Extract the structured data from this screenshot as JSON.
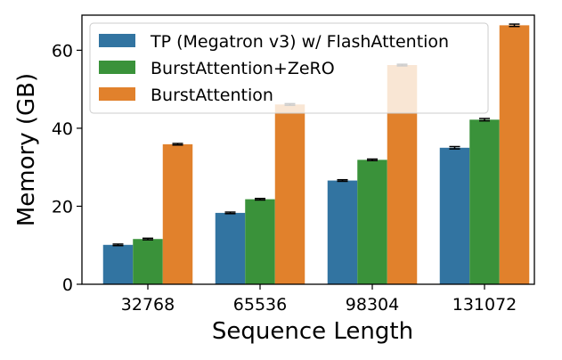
{
  "chart_data": {
    "type": "bar",
    "title": "",
    "xlabel": "Sequence Length",
    "ylabel": "Memory (GB)",
    "categories": [
      "32768",
      "65536",
      "98304",
      "131072"
    ],
    "ylim": [
      0,
      69
    ],
    "yticks": [
      0,
      20,
      40,
      60
    ],
    "grid": false,
    "legend_position": "top-left",
    "series": [
      {
        "name": "TP (Megatron v3) w/ FlashAttention",
        "color": "#3274a1",
        "values": [
          10.1,
          18.3,
          26.6,
          35.0
        ],
        "errors": [
          0.2,
          0.2,
          0.2,
          0.3
        ]
      },
      {
        "name": "BurstAttention+ZeRO",
        "color": "#3a923a",
        "values": [
          11.6,
          21.8,
          31.9,
          42.2
        ],
        "errors": [
          0.2,
          0.2,
          0.2,
          0.3
        ]
      },
      {
        "name": "BurstAttention",
        "color": "#e1812c",
        "values": [
          35.9,
          46.1,
          56.2,
          66.4
        ],
        "errors": [
          0.2,
          0.2,
          0.2,
          0.3
        ]
      }
    ]
  }
}
